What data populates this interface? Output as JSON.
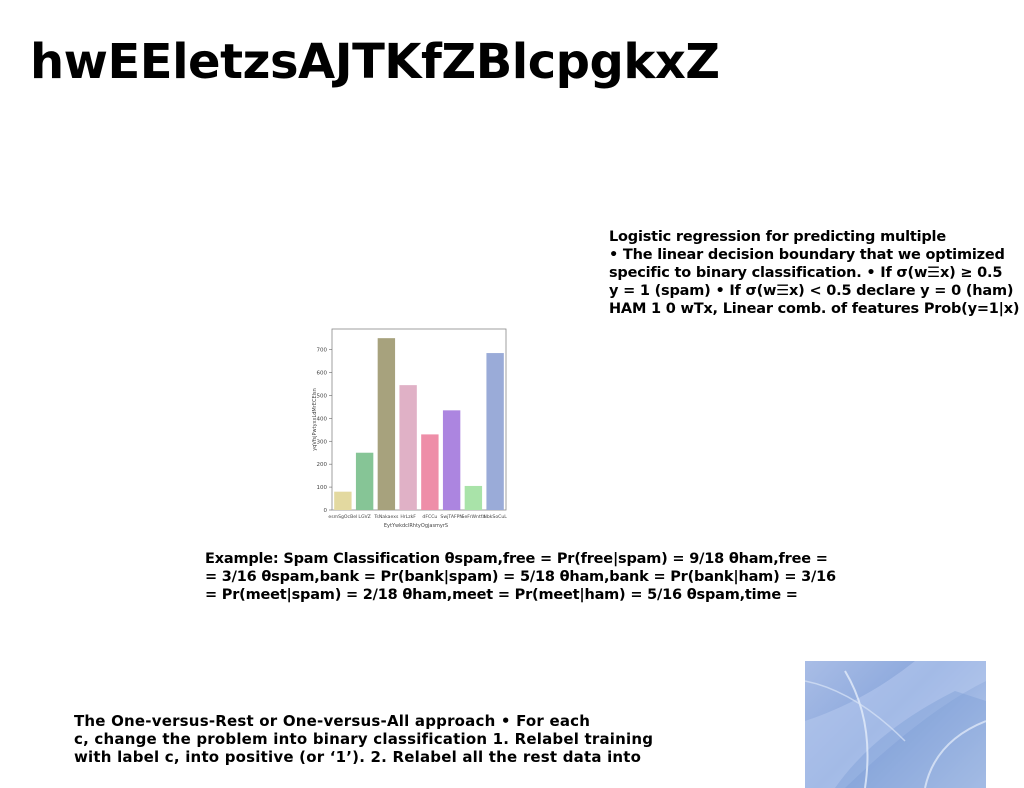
{
  "slide": {
    "title": "hwEEletzsAJTKfZBlcpgkxZ"
  },
  "logistic_block": {
    "lines": [
      "Logistic regression for predicting multiple",
      "• The linear decision boundary that we optimized",
      "specific to binary classification. • If σ(w☰x) ≥ 0.5",
      "y = 1 (spam) • If σ(w☰x) < 0.5 declare y = 0 (ham)",
      "HAM 1 0 wTx, Linear comb. of features Prob(y=1|x)"
    ]
  },
  "example_block": {
    "lines": [
      "Example: Spam Classification θspam,free = Pr(free|spam) = 9/18 θham,free =",
      "= 3/16 θspam,bank = Pr(bank|spam) = 5/18 θham,bank = Pr(bank|ham) = 3/16",
      "= Pr(meet|spam) = 2/18 θham,meet = Pr(meet|ham) = 5/16 θspam,time ="
    ]
  },
  "ovr_block": {
    "lines": [
      "The One-versus-Rest or One-versus-All approach • For each",
      "c, change the problem into binary classification 1. Relabel training",
      "with label c, into positive (or ‘1’). 2. Relabel all the rest data into"
    ]
  },
  "chart_data": {
    "type": "bar",
    "categories": [
      "esmSgOcBel",
      "LGVZ",
      "TsNakaexs",
      "HrLzkF",
      "dFCCu",
      "SwjTAFPN",
      "SeFrWntfa",
      "NbkSoCuL"
    ],
    "values": [
      80,
      250,
      750,
      545,
      330,
      435,
      105,
      685
    ],
    "colors": [
      "#e3d9a0",
      "#86c596",
      "#a7a27d",
      "#e0b1c6",
      "#ee8ea8",
      "#ac85e0",
      "#a9e3a9",
      "#9aabd8"
    ],
    "xlabel": "EytYwkdclRhtyOgjasmyrS",
    "ylabel": "yqVfsjPwtyxxLdMrECElsn",
    "ylim": [
      0,
      790
    ],
    "yticks": [
      0,
      100,
      200,
      300,
      400,
      500,
      600,
      700
    ],
    "grid": false
  }
}
